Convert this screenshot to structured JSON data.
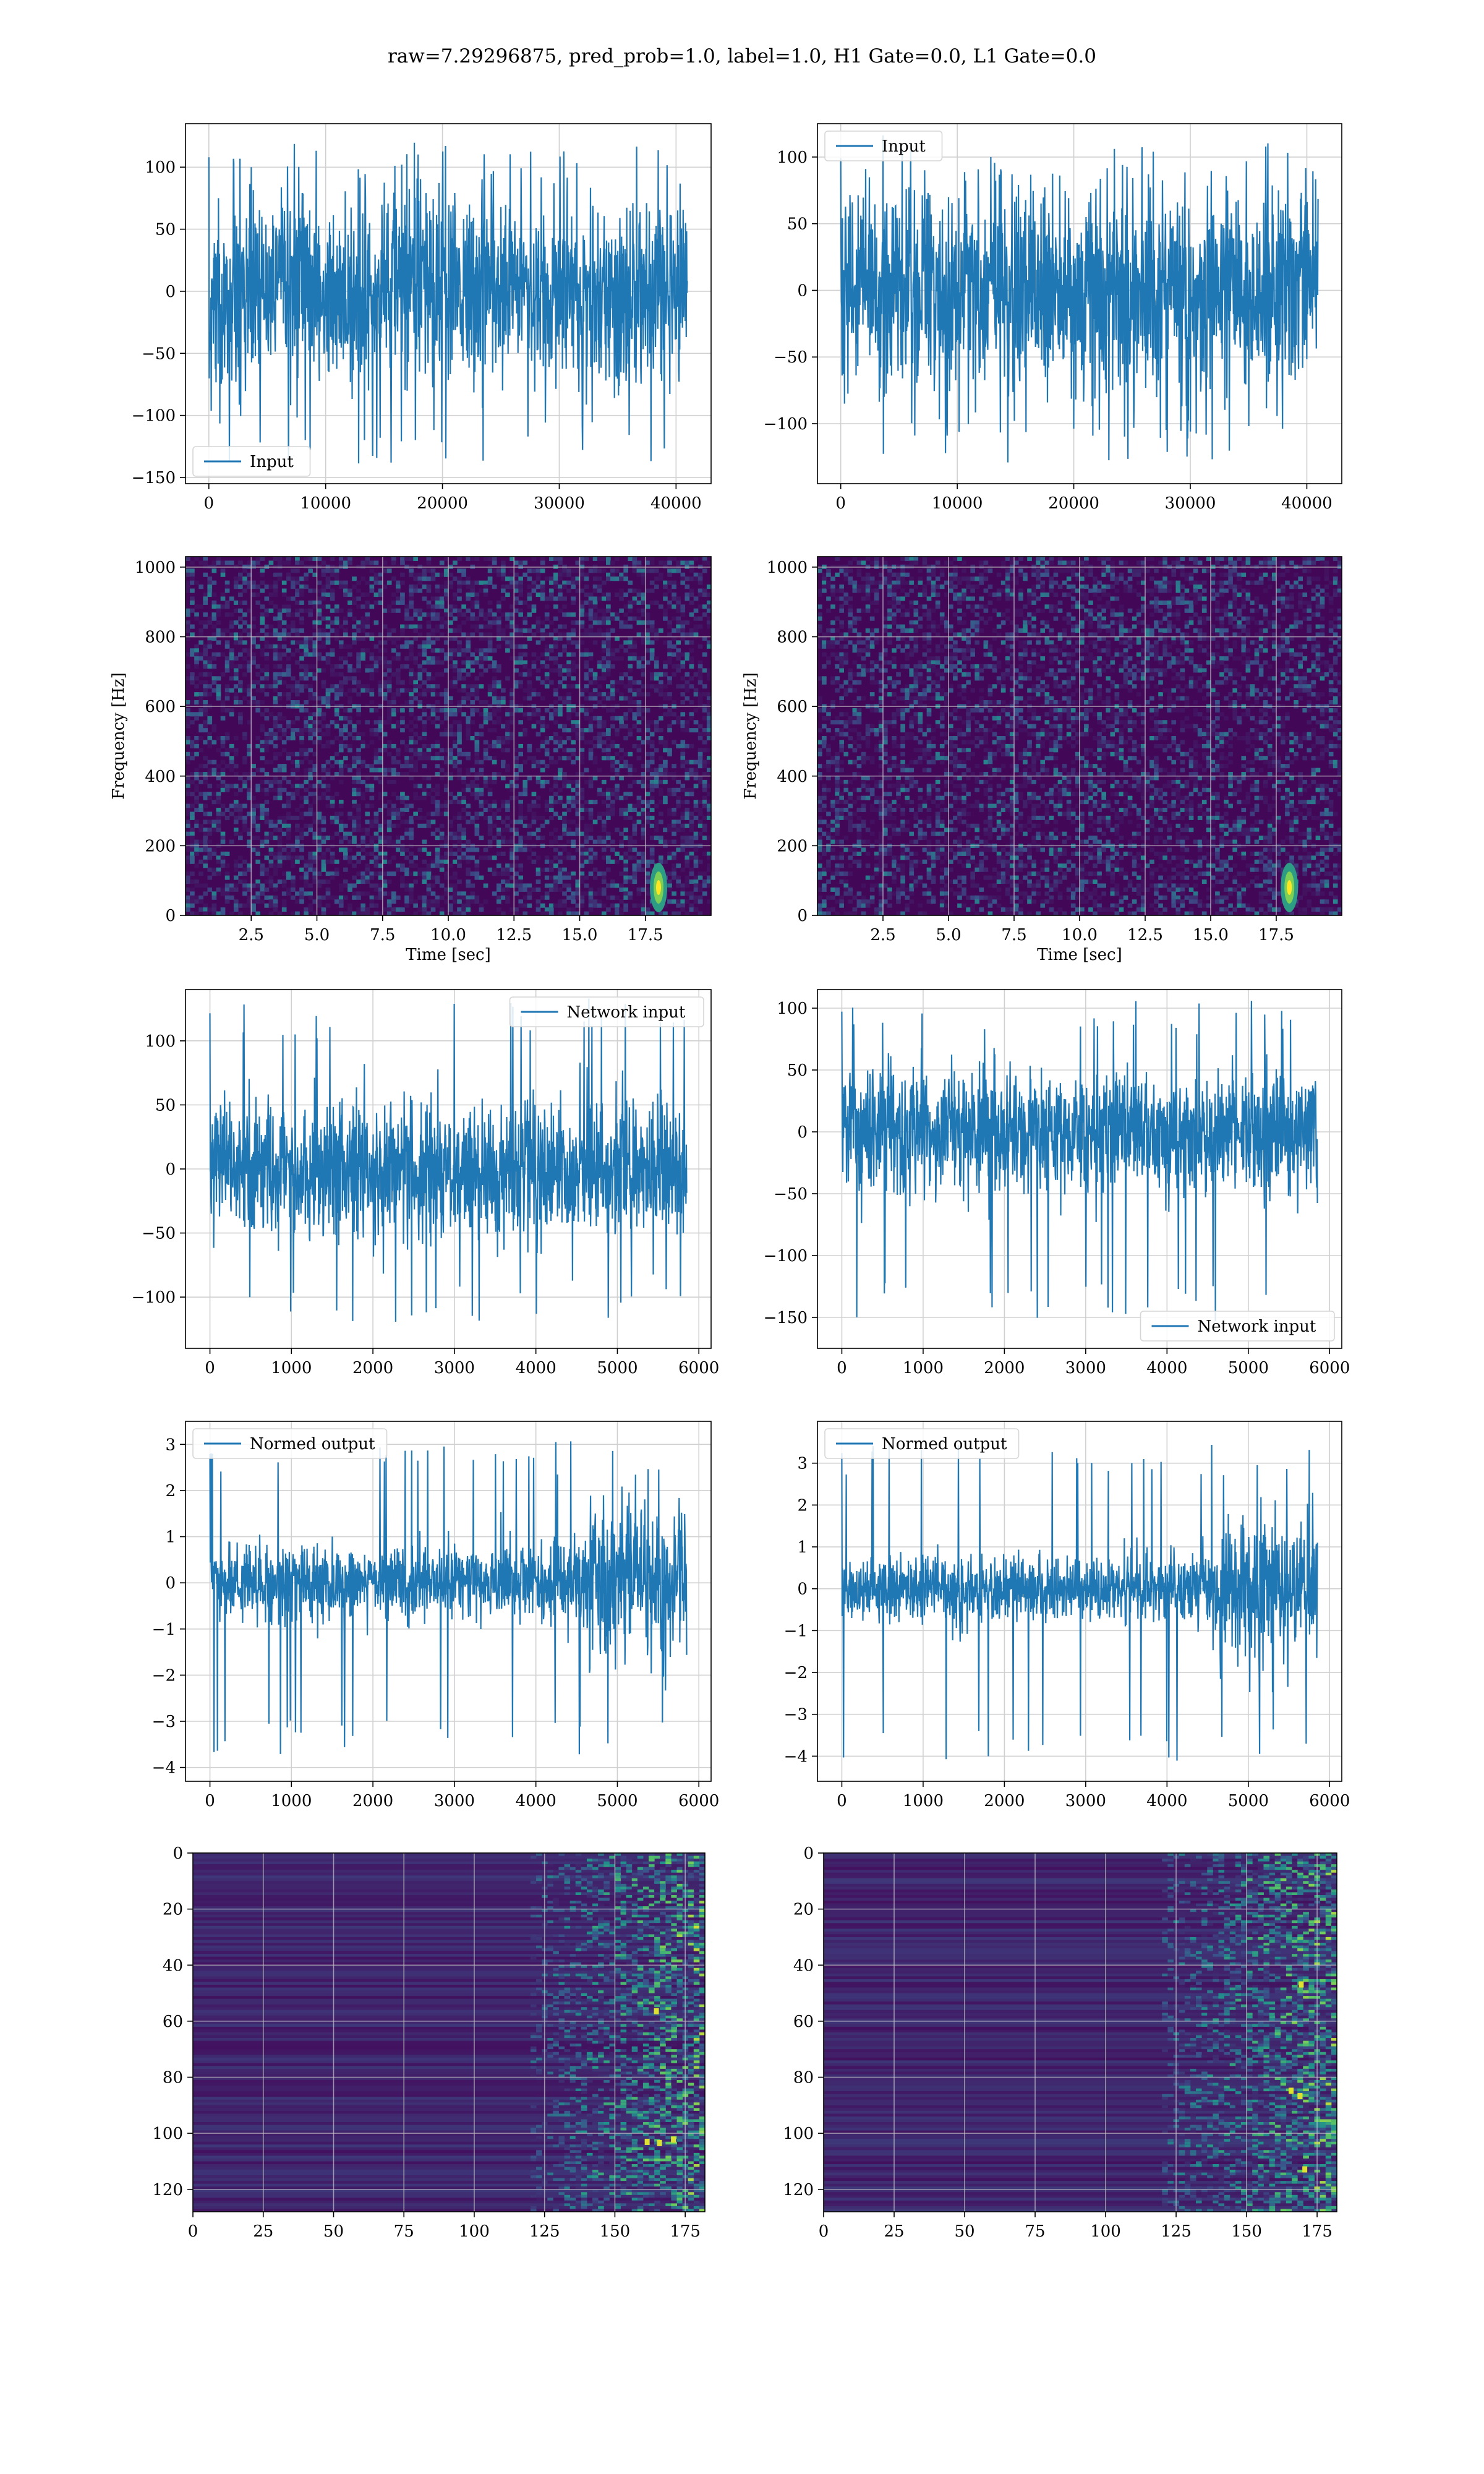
{
  "figure": {
    "title": "raw=7.29296875, pred_prob=1.0, label=1.0, H1 Gate=0.0, L1 Gate=0.0"
  },
  "colors": {
    "line": "#1f77b4",
    "grid": "#d0d0d0",
    "viridis_low": "#440154",
    "viridis_mid": "#21918c",
    "viridis_high": "#fde725"
  },
  "chart_data": [
    {
      "id": "h1-input",
      "type": "line",
      "row": 0,
      "col": 0,
      "xlim": [
        -2000,
        43000
      ],
      "ylim": [
        -155,
        135
      ],
      "xticks": [
        0,
        10000,
        20000,
        30000,
        40000
      ],
      "yticks": [
        -150,
        -100,
        -50,
        0,
        50,
        100
      ],
      "xlabel": "",
      "ylabel": "",
      "legend": {
        "label": "Input",
        "loc": "lower-left"
      },
      "series": [
        {
          "name": "Input",
          "x_range": [
            0,
            40960
          ],
          "amplitude_core": 70,
          "amplitude_peaks": [
            -140,
            120
          ]
        }
      ]
    },
    {
      "id": "l1-input",
      "type": "line",
      "row": 0,
      "col": 1,
      "xlim": [
        -2000,
        43000
      ],
      "ylim": [
        -145,
        125
      ],
      "xticks": [
        0,
        10000,
        20000,
        30000,
        40000
      ],
      "yticks": [
        -100,
        -50,
        0,
        50,
        100
      ],
      "xlabel": "",
      "ylabel": "",
      "legend": {
        "label": "Input",
        "loc": "upper-left"
      },
      "series": [
        {
          "name": "Input",
          "x_range": [
            0,
            40960
          ],
          "amplitude_core": 70,
          "amplitude_peaks": [
            -130,
            110
          ]
        }
      ]
    },
    {
      "id": "h1-spectrogram",
      "type": "heatmap",
      "row": 1,
      "col": 0,
      "xlim": [
        0,
        20
      ],
      "ylim": [
        0,
        1030
      ],
      "xticks": [
        2.5,
        5.0,
        7.5,
        10.0,
        12.5,
        15.0,
        17.5
      ],
      "yticks": [
        0,
        200,
        400,
        600,
        800,
        1000
      ],
      "xlabel": "Time [sec]",
      "ylabel": "Frequency [Hz]",
      "hotspot": {
        "time": 18.0,
        "freq": 80
      }
    },
    {
      "id": "l1-spectrogram",
      "type": "heatmap",
      "row": 1,
      "col": 1,
      "xlim": [
        0,
        20
      ],
      "ylim": [
        0,
        1030
      ],
      "xticks": [
        2.5,
        5.0,
        7.5,
        10.0,
        12.5,
        15.0,
        17.5
      ],
      "yticks": [
        0,
        200,
        400,
        600,
        800,
        1000
      ],
      "xlabel": "Time [sec]",
      "ylabel": "Frequency [Hz]",
      "hotspot": {
        "time": 18.0,
        "freq": 80
      }
    },
    {
      "id": "h1-network-input",
      "type": "line",
      "row": 2,
      "col": 0,
      "xlim": [
        -300,
        6150
      ],
      "ylim": [
        -140,
        140
      ],
      "xticks": [
        0,
        1000,
        2000,
        3000,
        4000,
        5000,
        6000
      ],
      "yticks": [
        -100,
        -50,
        0,
        50,
        100
      ],
      "xlabel": "",
      "ylabel": "",
      "legend": {
        "label": "Network input",
        "loc": "upper-right"
      },
      "series": [
        {
          "name": "Network input",
          "x_range": [
            0,
            5850
          ],
          "amplitude_core": 50,
          "amplitude_peaks": [
            -120,
            135
          ]
        }
      ]
    },
    {
      "id": "l1-network-input",
      "type": "line",
      "row": 2,
      "col": 1,
      "xlim": [
        -300,
        6150
      ],
      "ylim": [
        -175,
        115
      ],
      "xticks": [
        0,
        1000,
        2000,
        3000,
        4000,
        5000,
        6000
      ],
      "yticks": [
        -150,
        -100,
        -50,
        0,
        50,
        100
      ],
      "xlabel": "",
      "ylabel": "",
      "legend": {
        "label": "Network input",
        "loc": "lower-right"
      },
      "series": [
        {
          "name": "Network input",
          "x_range": [
            0,
            5850
          ],
          "amplitude_core": 45,
          "amplitude_peaks": [
            -160,
            108
          ]
        }
      ]
    },
    {
      "id": "h1-normed-output",
      "type": "line",
      "row": 3,
      "col": 0,
      "xlim": [
        -300,
        6150
      ],
      "ylim": [
        -4.3,
        3.5
      ],
      "xticks": [
        0,
        1000,
        2000,
        3000,
        4000,
        5000,
        6000
      ],
      "yticks": [
        -4,
        -3,
        -2,
        -1,
        0,
        1,
        2,
        3
      ],
      "xlabel": "",
      "ylabel": "",
      "legend": {
        "label": "Normed output",
        "loc": "upper-left"
      },
      "series": [
        {
          "name": "Normed output",
          "x_range": [
            0,
            5850
          ],
          "amplitude_core": 0.7,
          "burst_start": 4650,
          "amplitude_peaks": [
            -3.9,
            3.1
          ]
        }
      ]
    },
    {
      "id": "l1-normed-output",
      "type": "line",
      "row": 3,
      "col": 1,
      "xlim": [
        -300,
        6150
      ],
      "ylim": [
        -4.6,
        4.0
      ],
      "xticks": [
        0,
        1000,
        2000,
        3000,
        4000,
        5000,
        6000
      ],
      "yticks": [
        -4,
        -3,
        -2,
        -1,
        0,
        1,
        2,
        3
      ],
      "xlabel": "",
      "ylabel": "",
      "legend": {
        "label": "Normed output",
        "loc": "upper-left"
      },
      "series": [
        {
          "name": "Normed output",
          "x_range": [
            0,
            5850
          ],
          "amplitude_core": 0.7,
          "burst_start": 4650,
          "amplitude_peaks": [
            -4.2,
            3.6
          ]
        }
      ]
    },
    {
      "id": "h1-feature-map",
      "type": "heatmap",
      "row": 4,
      "col": 0,
      "xlim": [
        0,
        182
      ],
      "ylim": [
        128,
        0
      ],
      "xticks": [
        0,
        25,
        50,
        75,
        100,
        125,
        150,
        175
      ],
      "yticks": [
        0,
        20,
        40,
        60,
        80,
        100,
        120
      ],
      "xlabel": "",
      "ylabel": "",
      "activity_start": 120
    },
    {
      "id": "l1-feature-map",
      "type": "heatmap",
      "row": 4,
      "col": 1,
      "xlim": [
        0,
        182
      ],
      "ylim": [
        128,
        0
      ],
      "xticks": [
        0,
        25,
        50,
        75,
        100,
        125,
        150,
        175
      ],
      "yticks": [
        0,
        20,
        40,
        60,
        80,
        100,
        120
      ],
      "xlabel": "",
      "ylabel": "",
      "activity_start": 120
    }
  ]
}
